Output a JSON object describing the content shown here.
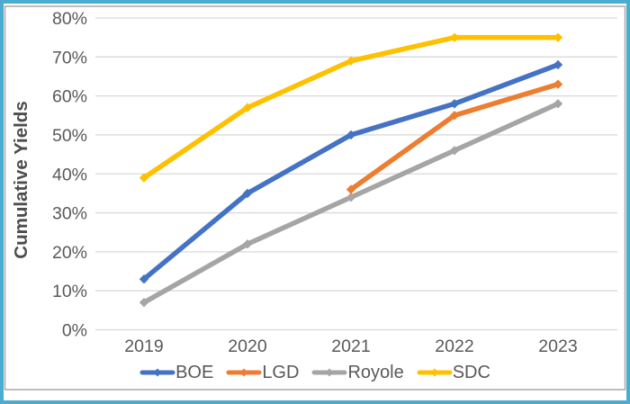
{
  "window": {
    "background": "#FFFFFF",
    "border_color": "#4AACCE",
    "frame_border_color": "#A9A9A9"
  },
  "chart_data": {
    "type": "line",
    "title": "",
    "ylabel": "Cumulative Yields",
    "ylabel_color": "#4D4D4D",
    "xlabel": "",
    "categories": [
      "2019",
      "2020",
      "2021",
      "2022",
      "2023"
    ],
    "y_ticks": [
      "0%",
      "10%",
      "20%",
      "30%",
      "40%",
      "50%",
      "60%",
      "70%",
      "80%"
    ],
    "ylim": [
      0,
      80
    ],
    "grid": true,
    "gridline_color": "#D9D9D9",
    "text_color": "#595959",
    "legend_position": "bottom",
    "series": [
      {
        "name": "BOE",
        "color": "#4472C4",
        "values": [
          13,
          35,
          50,
          58,
          68
        ]
      },
      {
        "name": "LGD",
        "color": "#ED7D31",
        "values": [
          null,
          null,
          36,
          55,
          63
        ]
      },
      {
        "name": "Royole",
        "color": "#A5A5A5",
        "values": [
          7,
          22,
          34,
          46,
          58
        ]
      },
      {
        "name": "SDC",
        "color": "#FFC000",
        "values": [
          39,
          57,
          69,
          75,
          75
        ]
      }
    ]
  }
}
